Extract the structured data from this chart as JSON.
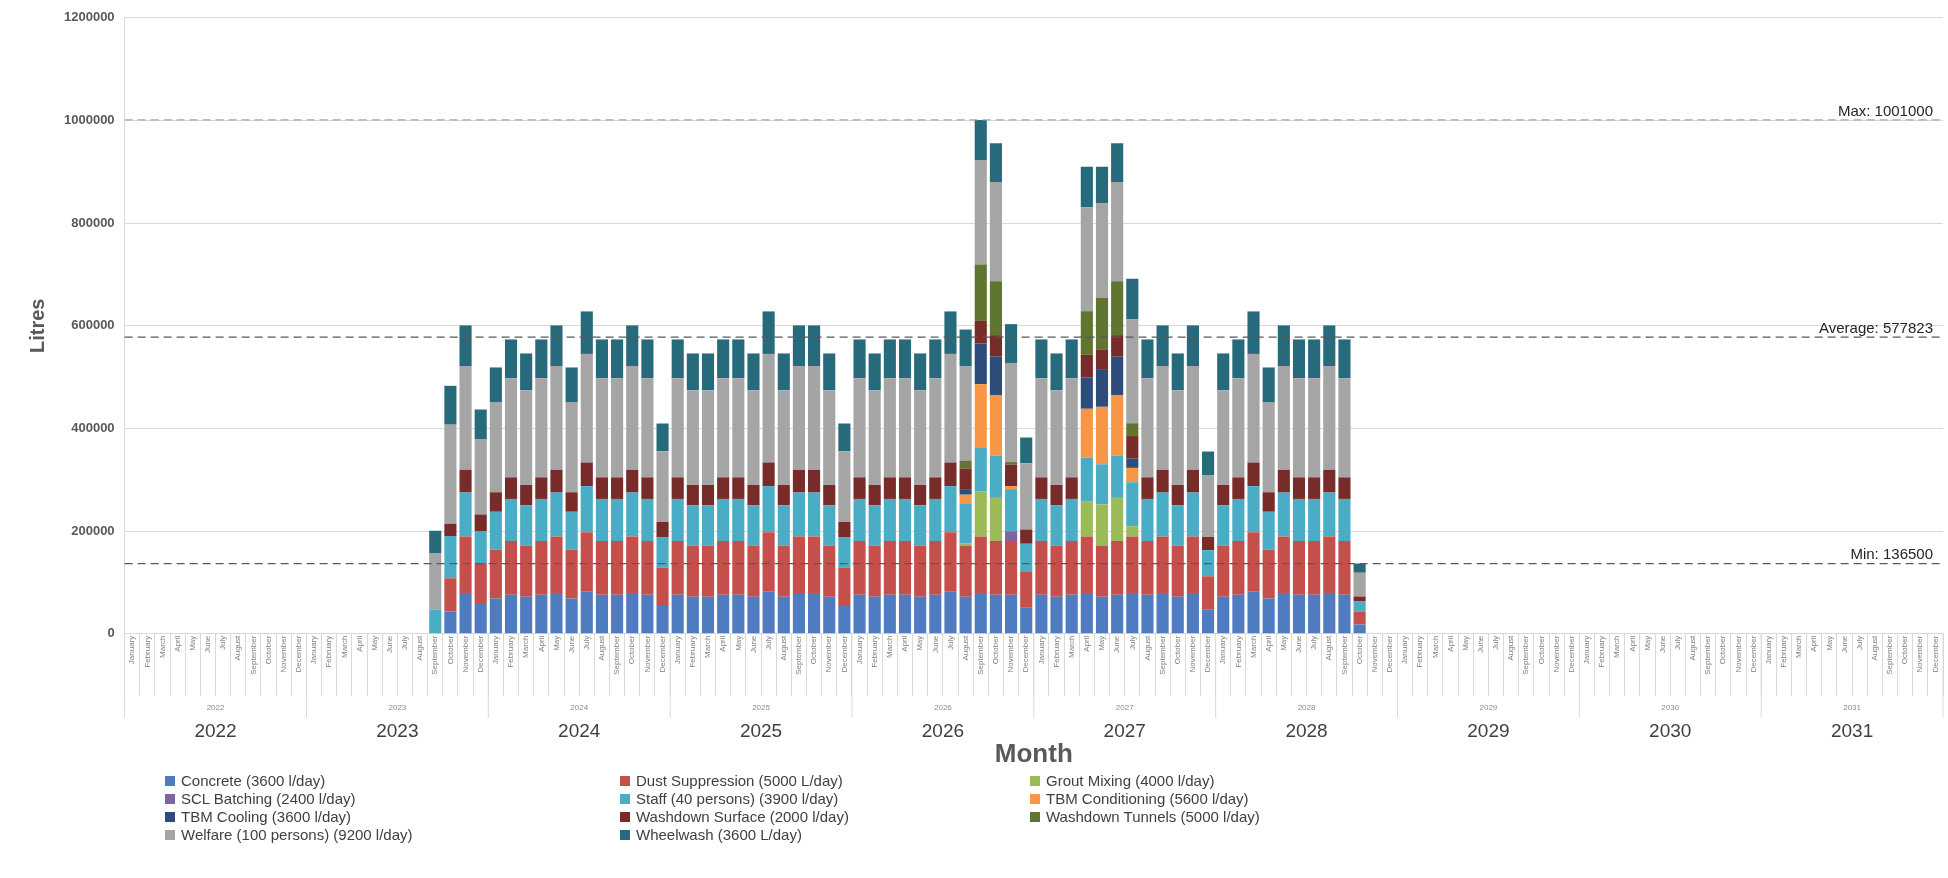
{
  "chart_data": {
    "type": "bar",
    "stacked": true,
    "xlabel": "Month",
    "ylabel": "Litres",
    "categories": [
      "January",
      "February",
      "March",
      "April",
      "May",
      "June",
      "July",
      "August",
      "September",
      "October",
      "November",
      "December",
      "January",
      "February",
      "March",
      "April",
      "May",
      "June",
      "July",
      "August",
      "September",
      "October",
      "November",
      "December",
      "January",
      "February",
      "March",
      "April",
      "May",
      "June",
      "July",
      "August",
      "September",
      "October",
      "November",
      "December",
      "January",
      "February",
      "March",
      "April",
      "May",
      "June",
      "July",
      "August",
      "September",
      "October",
      "November",
      "December",
      "January",
      "February",
      "March",
      "April",
      "May",
      "June",
      "July",
      "August",
      "September",
      "October",
      "November",
      "December",
      "January",
      "February",
      "March",
      "April",
      "May",
      "June",
      "July",
      "August",
      "September",
      "October",
      "November",
      "December",
      "January",
      "February",
      "March",
      "April",
      "May",
      "June",
      "July",
      "August",
      "September",
      "October",
      "November",
      "December",
      "January",
      "February",
      "March",
      "April",
      "May",
      "June",
      "July",
      "August",
      "September",
      "October",
      "November",
      "December",
      "January",
      "February",
      "March",
      "April",
      "May",
      "June",
      "July",
      "August",
      "September",
      "October",
      "November",
      "December",
      "January",
      "February",
      "March",
      "April",
      "May",
      "June",
      "July",
      "August",
      "September",
      "October",
      "November",
      "December"
    ],
    "annotations": [
      "2022",
      "2023",
      "2024",
      "2025",
      "2026",
      "2027",
      "2028",
      "2029",
      "2030",
      "2031"
    ],
    "ylim": [
      0,
      1200000
    ],
    "yticks": [
      0,
      200000,
      400000,
      600000,
      800000,
      1000000,
      1200000
    ],
    "grid": "y",
    "legend": "bottom",
    "ref_lines": [
      {
        "axis": "y",
        "value": 1001000,
        "label": "Max: 1001000",
        "color": "#a6a6a6",
        "line_style": "dashed"
      },
      {
        "axis": "y",
        "value": 577823,
        "label": "Average: 577823",
        "color": "#595959",
        "line_style": "dashed"
      },
      {
        "axis": "y",
        "value": 136500,
        "label": "Min: 136500",
        "color": "#595959",
        "line_style": "dashed"
      }
    ],
    "series": [
      {
        "name": "Concrete (3600 l/day)",
        "color": "#4f7bc0",
        "values": [
          null,
          null,
          null,
          null,
          null,
          null,
          null,
          null,
          null,
          null,
          null,
          null,
          null,
          null,
          null,
          null,
          null,
          null,
          null,
          null,
          null,
          43200,
          79200,
          57600,
          68400,
          75600,
          72000,
          75600,
          79200,
          68400,
          82800,
          75600,
          75600,
          79200,
          75600,
          54000,
          75600,
          72000,
          72000,
          75600,
          75600,
          72000,
          82800,
          72000,
          79200,
          79200,
          72000,
          54000,
          75600,
          72000,
          75600,
          75600,
          72000,
          75600,
          82800,
          72000,
          79200,
          75600,
          75600,
          50400,
          75600,
          72000,
          75600,
          79200,
          72000,
          75600,
          79200,
          75600,
          79200,
          72000,
          79200,
          46800,
          72000,
          75600,
          82800,
          68400,
          79200,
          75600,
          75600,
          79200,
          75600,
          18000,
          null,
          null,
          null,
          null,
          null,
          null,
          null,
          null,
          null,
          null,
          null,
          null,
          null,
          null,
          null,
          null,
          null,
          null,
          null,
          null,
          null,
          null,
          null,
          null,
          null,
          null,
          null,
          null,
          null,
          null,
          null,
          null,
          null,
          null,
          null,
          null,
          null,
          null
        ]
      },
      {
        "name": "Dust Suppression (5000 L/day)",
        "color": "#c5504b",
        "values": [
          null,
          null,
          null,
          null,
          null,
          null,
          null,
          null,
          null,
          null,
          null,
          null,
          null,
          null,
          null,
          null,
          null,
          null,
          null,
          null,
          null,
          65000,
          110000,
          80000,
          95000,
          105000,
          100000,
          105000,
          110000,
          95000,
          115000,
          105000,
          105000,
          110000,
          105000,
          75000,
          105000,
          100000,
          100000,
          105000,
          105000,
          100000,
          115000,
          100000,
          110000,
          110000,
          100000,
          75000,
          105000,
          100000,
          105000,
          105000,
          100000,
          105000,
          115000,
          100000,
          110000,
          105000,
          105000,
          70000,
          105000,
          100000,
          105000,
          110000,
          100000,
          105000,
          110000,
          105000,
          110000,
          100000,
          110000,
          65000,
          100000,
          105000,
          115000,
          95000,
          110000,
          105000,
          105000,
          110000,
          105000,
          25000,
          null,
          null,
          null,
          null,
          null,
          null,
          null,
          null,
          null,
          null,
          null,
          null,
          null,
          null,
          null,
          null,
          null,
          null,
          null,
          null,
          null,
          null,
          null,
          null,
          null,
          null,
          null,
          null,
          null,
          null,
          null,
          null,
          null,
          null,
          null,
          null,
          null,
          null
        ]
      },
      {
        "name": "Grout Mixing (4000 l/day)",
        "color": "#9bbb59",
        "values": [
          null,
          null,
          null,
          null,
          null,
          null,
          null,
          null,
          null,
          null,
          null,
          null,
          null,
          null,
          null,
          null,
          null,
          null,
          null,
          null,
          null,
          null,
          null,
          null,
          null,
          null,
          null,
          null,
          null,
          null,
          null,
          null,
          null,
          null,
          null,
          null,
          null,
          null,
          null,
          null,
          null,
          null,
          null,
          null,
          null,
          null,
          null,
          null,
          null,
          null,
          null,
          null,
          null,
          null,
          null,
          4000,
          88000,
          84000,
          null,
          null,
          null,
          null,
          null,
          68000,
          80000,
          84000,
          20000,
          null,
          null,
          null,
          null,
          null,
          null,
          null,
          null,
          null,
          null,
          null,
          null,
          null,
          null,
          null,
          null,
          null,
          null,
          null,
          null,
          null,
          null,
          null,
          null,
          null,
          null,
          null,
          null,
          null,
          null,
          null,
          null,
          null,
          null,
          null,
          null,
          null,
          null,
          null,
          null,
          null,
          null,
          null,
          null,
          null,
          null,
          null,
          null,
          null,
          null,
          null,
          null,
          null
        ]
      },
      {
        "name": "SCL Batching (2400 l/day)",
        "color": "#8064a2",
        "values": [
          null,
          null,
          null,
          null,
          null,
          null,
          null,
          null,
          null,
          null,
          null,
          null,
          null,
          null,
          null,
          null,
          null,
          null,
          null,
          null,
          null,
          null,
          null,
          null,
          null,
          null,
          null,
          null,
          null,
          null,
          null,
          null,
          null,
          null,
          null,
          null,
          null,
          null,
          null,
          null,
          null,
          null,
          null,
          null,
          null,
          null,
          null,
          null,
          null,
          null,
          null,
          null,
          null,
          null,
          null,
          null,
          null,
          null,
          19200,
          null,
          null,
          null,
          null,
          null,
          null,
          null,
          null,
          null,
          null,
          null,
          null,
          null,
          null,
          null,
          null,
          null,
          null,
          null,
          null,
          null,
          null,
          null,
          null,
          null,
          null,
          null,
          null,
          null,
          null,
          null,
          null,
          null,
          null,
          null,
          null,
          null,
          null,
          null,
          null,
          null,
          null,
          null,
          null,
          null,
          null,
          null,
          null,
          null,
          null,
          null,
          null,
          null,
          null,
          null,
          null,
          null,
          null,
          null,
          null,
          null
        ]
      },
      {
        "name": "Staff (40 persons) (3900 l/day)",
        "color": "#4bacc6",
        "values": [
          null,
          null,
          null,
          null,
          null,
          null,
          null,
          null,
          null,
          null,
          null,
          null,
          null,
          null,
          null,
          null,
          null,
          null,
          null,
          null,
          46800,
          81900,
          85800,
          62400,
          74100,
          81900,
          78000,
          81900,
          85800,
          74100,
          89700,
          81900,
          81900,
          85800,
          81900,
          58500,
          81900,
          78000,
          78000,
          81900,
          81900,
          78000,
          89700,
          78000,
          85800,
          85800,
          78000,
          58500,
          81900,
          78000,
          81900,
          81900,
          78000,
          81900,
          89700,
          78000,
          85800,
          81900,
          81900,
          54600,
          81900,
          78000,
          81900,
          85800,
          78000,
          81900,
          85800,
          81900,
          85800,
          78000,
          85800,
          50700,
          78000,
          81900,
          89700,
          74100,
          85800,
          81900,
          81900,
          85800,
          81900,
          19500,
          null,
          null,
          null,
          null,
          null,
          null,
          null,
          null,
          null,
          null,
          null,
          null,
          null,
          null,
          null,
          null,
          null,
          null,
          null,
          null,
          null,
          null,
          null,
          null,
          null,
          null,
          null,
          null,
          null,
          null,
          null,
          null,
          null,
          null,
          null,
          null,
          null,
          null
        ]
      },
      {
        "name": "TBM Conditioning  (5600 l/day)",
        "color": "#f79646",
        "values": [
          null,
          null,
          null,
          null,
          null,
          null,
          null,
          null,
          null,
          null,
          null,
          null,
          null,
          null,
          null,
          null,
          null,
          null,
          null,
          null,
          null,
          null,
          null,
          null,
          null,
          null,
          null,
          null,
          null,
          null,
          null,
          null,
          null,
          null,
          null,
          null,
          null,
          null,
          null,
          null,
          null,
          null,
          null,
          null,
          null,
          null,
          null,
          null,
          null,
          null,
          null,
          null,
          null,
          null,
          null,
          16800,
          123200,
          117600,
          5600,
          null,
          null,
          null,
          null,
          95200,
          112000,
          117600,
          28000,
          null,
          null,
          null,
          null,
          null,
          null,
          null,
          null,
          null,
          null,
          null,
          null,
          null,
          null,
          null,
          null,
          null,
          null,
          null,
          null,
          null,
          null,
          null,
          null,
          null,
          null,
          null,
          null,
          null,
          null,
          null,
          null,
          null,
          null,
          null,
          null,
          null,
          null,
          null,
          null,
          null,
          null,
          null,
          null,
          null,
          null,
          null,
          null,
          null,
          null,
          null,
          null,
          null
        ]
      },
      {
        "name": "TBM Cooling (3600 l/day)",
        "color": "#2c4d7a",
        "values": [
          null,
          null,
          null,
          null,
          null,
          null,
          null,
          null,
          null,
          null,
          null,
          null,
          null,
          null,
          null,
          null,
          null,
          null,
          null,
          null,
          null,
          null,
          null,
          null,
          null,
          null,
          null,
          null,
          null,
          null,
          null,
          null,
          null,
          null,
          null,
          null,
          null,
          null,
          null,
          null,
          null,
          null,
          null,
          null,
          null,
          null,
          null,
          null,
          null,
          null,
          null,
          null,
          null,
          null,
          null,
          10800,
          79200,
          75600,
          null,
          null,
          null,
          null,
          null,
          61200,
          72000,
          75600,
          18000,
          null,
          null,
          null,
          null,
          null,
          null,
          null,
          null,
          null,
          null,
          null,
          null,
          null,
          null,
          null,
          null,
          null,
          null,
          null,
          null,
          null,
          null,
          null,
          null,
          null,
          null,
          null,
          null,
          null,
          null,
          null,
          null,
          null,
          null,
          null,
          null,
          null,
          null,
          null,
          null,
          null,
          null,
          null,
          null,
          null,
          null,
          null,
          null,
          null,
          null,
          null,
          null,
          null
        ]
      },
      {
        "name": "Washdown Surface (2000 l/day)",
        "color": "#772c2a",
        "values": [
          null,
          null,
          null,
          null,
          null,
          null,
          null,
          null,
          null,
          null,
          null,
          null,
          null,
          null,
          null,
          null,
          null,
          null,
          null,
          null,
          null,
          24000,
          44000,
          32000,
          38000,
          42000,
          40000,
          42000,
          44000,
          38000,
          46000,
          42000,
          42000,
          44000,
          42000,
          30000,
          42000,
          40000,
          40000,
          42000,
          42000,
          40000,
          46000,
          40000,
          44000,
          44000,
          40000,
          30000,
          42000,
          40000,
          42000,
          42000,
          40000,
          42000,
          46000,
          40000,
          44000,
          42000,
          42000,
          28000,
          42000,
          40000,
          42000,
          44000,
          40000,
          42000,
          44000,
          42000,
          44000,
          40000,
          44000,
          26000,
          40000,
          42000,
          46000,
          38000,
          44000,
          42000,
          42000,
          44000,
          42000,
          10000,
          null,
          null,
          null,
          null,
          null,
          null,
          null,
          null,
          null,
          null,
          null,
          null,
          null,
          null,
          null,
          null,
          null,
          null,
          null,
          null,
          null,
          null,
          null,
          null,
          null,
          null,
          null,
          null,
          null,
          null,
          null,
          null,
          null,
          null,
          null,
          null,
          null,
          null
        ]
      },
      {
        "name": "Washdown Tunnels (5000 l/day)",
        "color": "#5f7530",
        "values": [
          null,
          null,
          null,
          null,
          null,
          null,
          null,
          null,
          null,
          null,
          null,
          null,
          null,
          null,
          null,
          null,
          null,
          null,
          null,
          null,
          null,
          null,
          null,
          null,
          null,
          null,
          null,
          null,
          null,
          null,
          null,
          null,
          null,
          null,
          null,
          null,
          null,
          null,
          null,
          null,
          null,
          null,
          null,
          null,
          null,
          null,
          null,
          null,
          null,
          null,
          null,
          null,
          null,
          null,
          null,
          15000,
          110000,
          105000,
          5000,
          null,
          null,
          null,
          null,
          85000,
          100000,
          105000,
          25000,
          null,
          null,
          null,
          null,
          null,
          null,
          null,
          null,
          null,
          null,
          null,
          null,
          null,
          null,
          null,
          null,
          null,
          null,
          null,
          null,
          null,
          null,
          null,
          null,
          null,
          null,
          null,
          null,
          null,
          null,
          null,
          null,
          null,
          null,
          null,
          null,
          null,
          null,
          null,
          null,
          null,
          null,
          null,
          null,
          null,
          null,
          null,
          null,
          null,
          null,
          null,
          null,
          null
        ]
      },
      {
        "name": "Welfare (100 persons) (9200 l/day)",
        "color": "#a5a5a5",
        "values": [
          null,
          null,
          null,
          null,
          null,
          null,
          null,
          null,
          null,
          null,
          null,
          null,
          null,
          null,
          null,
          null,
          null,
          null,
          null,
          null,
          110400,
          193200,
          202400,
          147200,
          174800,
          193200,
          184000,
          193200,
          202400,
          174800,
          211600,
          193200,
          193200,
          202400,
          193200,
          138000,
          193200,
          184000,
          184000,
          193200,
          193200,
          184000,
          211600,
          184000,
          202400,
          202400,
          184000,
          138000,
          193200,
          184000,
          193200,
          193200,
          184000,
          193200,
          211600,
          184000,
          202400,
          193200,
          193200,
          128800,
          193200,
          184000,
          193200,
          202400,
          184000,
          193200,
          202400,
          193200,
          202400,
          184000,
          202400,
          119600,
          184000,
          193200,
          211600,
          174800,
          202400,
          193200,
          193200,
          202400,
          193200,
          46000,
          null,
          null,
          null,
          null,
          null,
          null,
          null,
          null,
          null,
          null,
          null,
          null,
          null,
          null,
          null,
          null,
          null,
          null,
          null,
          null,
          null,
          null,
          null,
          null,
          null,
          null,
          null,
          null,
          null,
          null,
          null,
          null,
          null,
          null,
          null,
          null,
          null,
          null
        ]
      },
      {
        "name": "Wheelwash (3600 L/day)",
        "color": "#276a7c",
        "values": [
          null,
          null,
          null,
          null,
          null,
          null,
          null,
          null,
          null,
          null,
          null,
          null,
          null,
          null,
          null,
          null,
          null,
          null,
          null,
          null,
          43200,
          75600,
          79200,
          57600,
          68400,
          75600,
          72000,
          75600,
          79200,
          68400,
          82800,
          75600,
          75600,
          79200,
          75600,
          54000,
          75600,
          72000,
          72000,
          75600,
          75600,
          72000,
          82800,
          72000,
          79200,
          79200,
          72000,
          54000,
          75600,
          72000,
          75600,
          75600,
          72000,
          75600,
          82800,
          72000,
          79200,
          75600,
          75600,
          50400,
          75600,
          72000,
          75600,
          79200,
          72000,
          75600,
          79200,
          75600,
          79200,
          72000,
          79200,
          46800,
          72000,
          75600,
          82800,
          68400,
          79200,
          75600,
          75600,
          79200,
          75600,
          18000,
          null,
          null,
          null,
          null,
          null,
          null,
          null,
          null,
          null,
          null,
          null,
          null,
          null,
          null,
          null,
          null,
          null,
          null,
          null,
          null,
          null,
          null,
          null,
          null,
          null,
          null,
          null,
          null,
          null,
          null,
          null,
          null,
          null,
          null,
          null,
          null,
          null,
          null
        ]
      }
    ]
  }
}
